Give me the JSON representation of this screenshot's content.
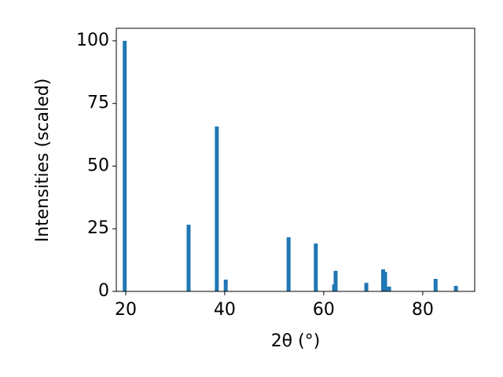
{
  "chart_data": {
    "type": "bar",
    "x_label": "2θ (°)",
    "y_label": "Intensities (scaled)",
    "x": [
      19.8,
      32.7,
      38.4,
      40.2,
      52.9,
      58.4,
      62.1,
      62.4,
      68.6,
      72.0,
      72.4,
      73.2,
      82.6,
      86.7
    ],
    "values": [
      100,
      26.6,
      65.8,
      4.7,
      21.6,
      19.1,
      2.8,
      8.2,
      3.4,
      8.8,
      7.8,
      1.9,
      5.0,
      2.2
    ],
    "color": "#1f77b4",
    "xlim": [
      18.1,
      90.5
    ],
    "ylim": [
      0,
      105
    ],
    "xticks": [
      20,
      40,
      60,
      80
    ],
    "yticks": [
      0,
      25,
      50,
      75,
      100
    ]
  }
}
